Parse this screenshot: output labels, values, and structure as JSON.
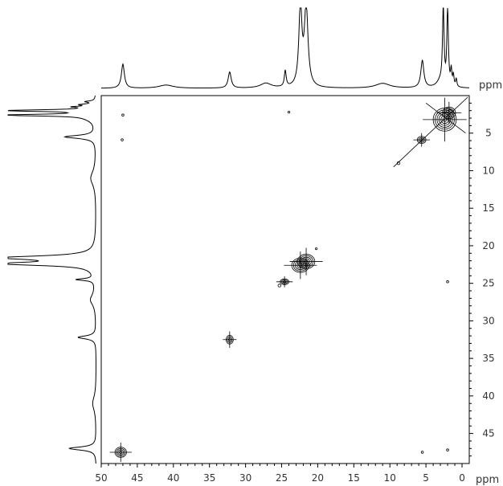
{
  "chart_data": {
    "type": "2d-nmr-contour",
    "axis_unit": "ppm",
    "x_axis": {
      "range": [
        50,
        -1
      ],
      "ticks": [
        50,
        45,
        40,
        35,
        30,
        25,
        20,
        15,
        10,
        5,
        0
      ],
      "unit_label": "ppm"
    },
    "y_axis": {
      "range": [
        0,
        49
      ],
      "ticks": [
        5,
        10,
        15,
        20,
        25,
        30,
        35,
        40,
        45
      ],
      "unit_label": "ppm"
    },
    "projection_peaks": [
      {
        "ppm": 47.0,
        "intensity": 0.3,
        "width": 0.25
      },
      {
        "ppm": 41.0,
        "intensity": 0.04,
        "width": 1.2
      },
      {
        "ppm": 32.2,
        "intensity": 0.2,
        "width": 0.25
      },
      {
        "ppm": 27.2,
        "intensity": 0.06,
        "width": 0.9
      },
      {
        "ppm": 24.5,
        "intensity": 0.2,
        "width": 0.15
      },
      {
        "ppm": 22.4,
        "intensity": 1.0,
        "width": 0.25
      },
      {
        "ppm": 21.6,
        "intensity": 1.0,
        "width": 0.3
      },
      {
        "ppm": 11.0,
        "intensity": 0.06,
        "width": 1.2
      },
      {
        "ppm": 5.5,
        "intensity": 0.34,
        "width": 0.25
      },
      {
        "ppm": 3.0,
        "intensity": 0.08,
        "width": 0.6
      },
      {
        "ppm": 2.6,
        "intensity": 1.0,
        "width": 0.12
      },
      {
        "ppm": 2.0,
        "intensity": 1.0,
        "width": 0.12
      },
      {
        "ppm": 1.5,
        "intensity": 0.2,
        "width": 0.1
      },
      {
        "ppm": 1.2,
        "intensity": 0.14,
        "width": 0.1
      },
      {
        "ppm": 0.8,
        "intensity": 0.1,
        "width": 0.1
      }
    ],
    "cross_peaks": [
      {
        "x": 47.3,
        "y": 47.5,
        "rx": 0.8,
        "ry": 0.7,
        "levels": 4
      },
      {
        "x": 32.2,
        "y": 32.5,
        "rx": 0.5,
        "ry": 0.6,
        "levels": 3
      },
      {
        "x": 24.6,
        "y": 24.8,
        "rx": 0.6,
        "ry": 0.4,
        "levels": 3
      },
      {
        "x": 22.4,
        "y": 22.6,
        "rx": 1.2,
        "ry": 1.0,
        "levels": 5
      },
      {
        "x": 21.6,
        "y": 22.1,
        "rx": 1.2,
        "ry": 1.0,
        "levels": 5
      },
      {
        "x": 5.6,
        "y": 5.9,
        "rx": 0.6,
        "ry": 0.5,
        "levels": 3
      },
      {
        "x": 2.4,
        "y": 3.2,
        "rx": 1.6,
        "ry": 1.6,
        "levels": 6
      },
      {
        "x": 1.8,
        "y": 2.3,
        "rx": 0.9,
        "ry": 0.8,
        "levels": 4
      },
      {
        "x": 47.0,
        "y": 2.6,
        "rx": 0.15,
        "ry": 0.15,
        "levels": 1
      },
      {
        "x": 47.1,
        "y": 5.9,
        "rx": 0.15,
        "ry": 0.15,
        "levels": 1
      },
      {
        "x": 24.0,
        "y": 2.2,
        "rx": 0.12,
        "ry": 0.12,
        "levels": 1
      },
      {
        "x": 25.3,
        "y": 25.3,
        "rx": 0.2,
        "ry": 0.2,
        "levels": 1
      },
      {
        "x": 20.2,
        "y": 20.4,
        "rx": 0.12,
        "ry": 0.12,
        "levels": 1
      },
      {
        "x": 2.0,
        "y": 24.8,
        "rx": 0.15,
        "ry": 0.15,
        "levels": 1
      },
      {
        "x": 5.5,
        "y": 47.5,
        "rx": 0.15,
        "ry": 0.15,
        "levels": 1
      },
      {
        "x": 2.0,
        "y": 47.2,
        "rx": 0.15,
        "ry": 0.15,
        "levels": 1
      },
      {
        "x": 8.8,
        "y": 9.0,
        "rx": 0.2,
        "ry": 0.2,
        "levels": 1
      }
    ],
    "diagonal_streaks": [
      {
        "x1": 9.5,
        "y1": 9.5,
        "x2": -0.8,
        "y2": 0.2
      },
      {
        "x1": 5.0,
        "y1": 1.0,
        "x2": -0.5,
        "y2": 5.0
      }
    ]
  }
}
